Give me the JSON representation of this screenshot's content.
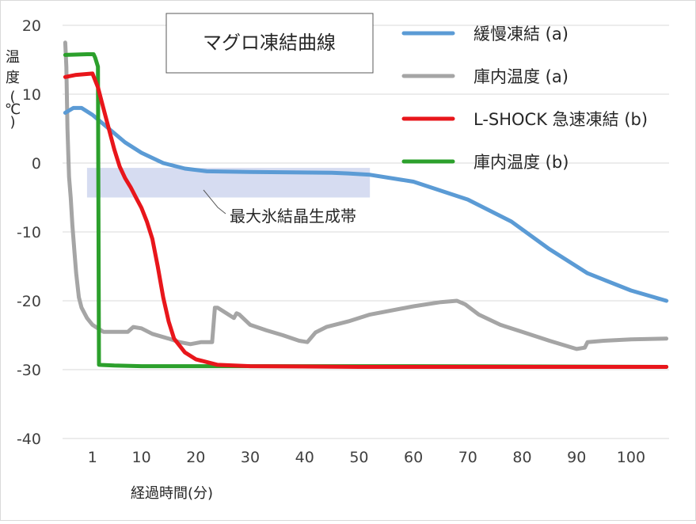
{
  "chart_data": {
    "type": "line",
    "title": "マグロ凍結曲線",
    "ylabel": "温度(℃)",
    "ylabel_chars": [
      "温",
      "度",
      "(",
      "℃",
      ")"
    ],
    "xlabel": "経過時間(分)",
    "ylim": [
      -40,
      20
    ],
    "yticks": [
      20,
      10,
      0,
      -10,
      -20,
      -30,
      -40
    ],
    "xlim": [
      -4.5,
      107
    ],
    "xticks": [
      1,
      10,
      20,
      30,
      40,
      50,
      60,
      70,
      80,
      90,
      100
    ],
    "grid": "horizontal",
    "legend_position": "top-right",
    "annotation": {
      "text": "最大氷結晶生成帯",
      "band_x": [
        0,
        52
      ],
      "band_y": [
        -5,
        -0.7
      ]
    },
    "series": [
      {
        "name": "緩慢凍結 (a)",
        "color": "#5b9bd5",
        "points": [
          [
            -4,
            7.3
          ],
          [
            -2.5,
            8
          ],
          [
            -1,
            8
          ],
          [
            1,
            7
          ],
          [
            4,
            5
          ],
          [
            7,
            3
          ],
          [
            10,
            1.5
          ],
          [
            14,
            0
          ],
          [
            18,
            -0.8
          ],
          [
            22,
            -1.2
          ],
          [
            30,
            -1.3
          ],
          [
            45,
            -1.4
          ],
          [
            48,
            -1.5
          ],
          [
            52,
            -1.7
          ],
          [
            60,
            -2.7
          ],
          [
            70,
            -5.3
          ],
          [
            78,
            -8.5
          ],
          [
            85,
            -12.5
          ],
          [
            92,
            -16
          ],
          [
            100,
            -18.5
          ],
          [
            106.5,
            -20
          ]
        ]
      },
      {
        "name": "庫内温度 (a)",
        "color": "#a5a5a5",
        "points": [
          [
            -4,
            17.5
          ],
          [
            -3.8,
            14
          ],
          [
            -3.6,
            5
          ],
          [
            -3.3,
            -2
          ],
          [
            -3,
            -5
          ],
          [
            -2.7,
            -9
          ],
          [
            -2.3,
            -13
          ],
          [
            -2,
            -16
          ],
          [
            -1.5,
            -19.5
          ],
          [
            -1,
            -21
          ],
          [
            0,
            -22.5
          ],
          [
            1,
            -23.5
          ],
          [
            3,
            -24.5
          ],
          [
            5,
            -24.5
          ],
          [
            7.5,
            -24.5
          ],
          [
            8.5,
            -23.8
          ],
          [
            10,
            -24
          ],
          [
            12,
            -24.8
          ],
          [
            15,
            -25.5
          ],
          [
            17,
            -26
          ],
          [
            19,
            -26.3
          ],
          [
            21,
            -26
          ],
          [
            23,
            -26
          ],
          [
            23.5,
            -21
          ],
          [
            24,
            -21
          ],
          [
            26,
            -22
          ],
          [
            27,
            -22.5
          ],
          [
            27.5,
            -21.8
          ],
          [
            28,
            -22
          ],
          [
            30,
            -23.5
          ],
          [
            33,
            -24.3
          ],
          [
            36,
            -25
          ],
          [
            39,
            -25.8
          ],
          [
            40.5,
            -26
          ],
          [
            42,
            -24.6
          ],
          [
            44,
            -23.8
          ],
          [
            48,
            -23
          ],
          [
            52,
            -22
          ],
          [
            60,
            -20.8
          ],
          [
            65,
            -20.2
          ],
          [
            68,
            -20
          ],
          [
            69.5,
            -20.5
          ],
          [
            72,
            -22
          ],
          [
            76,
            -23.5
          ],
          [
            80,
            -24.5
          ],
          [
            85,
            -25.8
          ],
          [
            90,
            -27
          ],
          [
            91.5,
            -26.8
          ],
          [
            92,
            -26
          ],
          [
            95,
            -25.8
          ],
          [
            100,
            -25.6
          ],
          [
            106.5,
            -25.5
          ]
        ]
      },
      {
        "name": "L-SHOCK 急速凍結 (b)",
        "color": "#e8161b",
        "points": [
          [
            -4,
            12.5
          ],
          [
            -2,
            12.8
          ],
          [
            1,
            13
          ],
          [
            2,
            11
          ],
          [
            3,
            8
          ],
          [
            4,
            5
          ],
          [
            5,
            2
          ],
          [
            6,
            -0.5
          ],
          [
            7,
            -2.2
          ],
          [
            8,
            -3.5
          ],
          [
            9,
            -5
          ],
          [
            10,
            -6.5
          ],
          [
            11,
            -8.5
          ],
          [
            12,
            -11
          ],
          [
            13,
            -15
          ],
          [
            14,
            -19.5
          ],
          [
            15,
            -23
          ],
          [
            16,
            -25.5
          ],
          [
            18,
            -27.5
          ],
          [
            20,
            -28.5
          ],
          [
            24,
            -29.3
          ],
          [
            30,
            -29.5
          ],
          [
            50,
            -29.6
          ],
          [
            80,
            -29.6
          ],
          [
            106.5,
            -29.6
          ]
        ]
      },
      {
        "name": "庫内温度 (b)",
        "color": "#2ca02c",
        "points": [
          [
            -4,
            15.7
          ],
          [
            0,
            15.8
          ],
          [
            1.2,
            15.8
          ],
          [
            1.5,
            15.3
          ],
          [
            2,
            14
          ],
          [
            2.2,
            -29.3
          ],
          [
            5,
            -29.4
          ],
          [
            10,
            -29.5
          ],
          [
            30,
            -29.5
          ],
          [
            60,
            -29.5
          ],
          [
            106.5,
            -29.6
          ]
        ]
      }
    ]
  }
}
